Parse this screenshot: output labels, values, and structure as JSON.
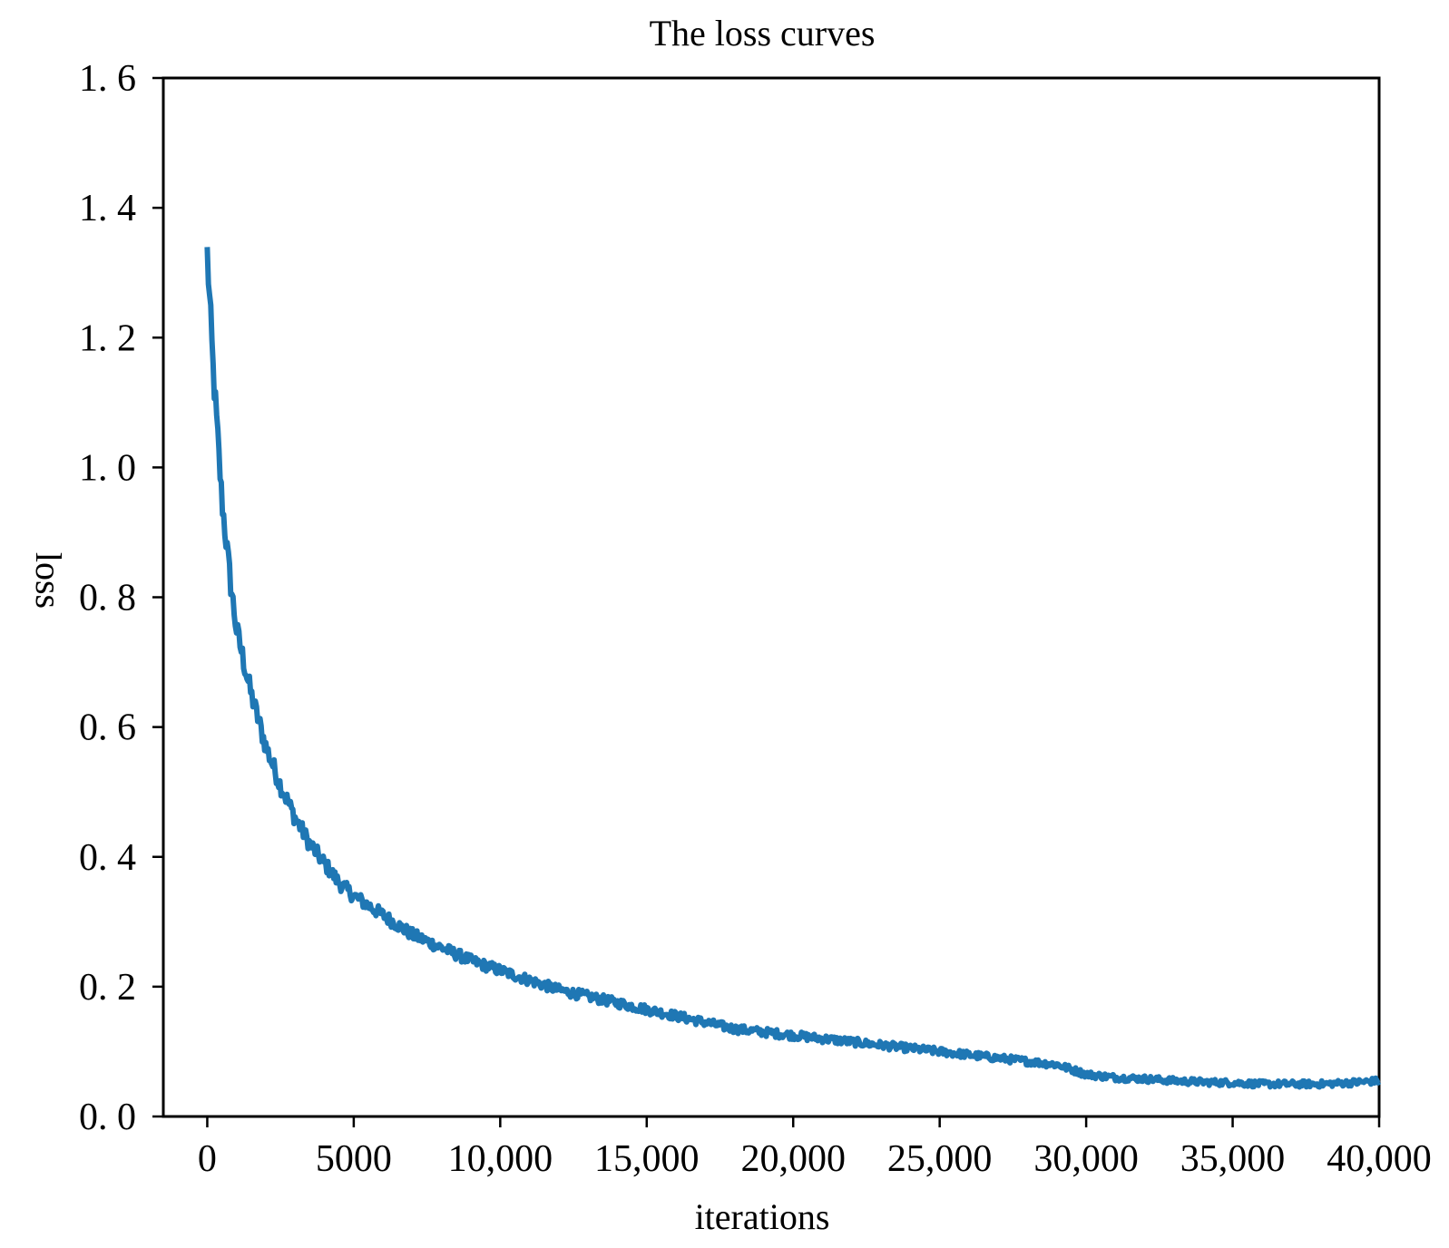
{
  "chart_data": {
    "type": "line",
    "title": "The loss curves",
    "xlabel": "iterations",
    "ylabel": "loss",
    "xlim": [
      -1500,
      40000
    ],
    "ylim": [
      0.0,
      1.6
    ],
    "x_ticks": [
      {
        "value": 0,
        "label": "0"
      },
      {
        "value": 5000,
        "label": "5000"
      },
      {
        "value": 10000,
        "label": "10,000"
      },
      {
        "value": 15000,
        "label": "15,000"
      },
      {
        "value": 20000,
        "label": "20,000"
      },
      {
        "value": 25000,
        "label": "25,000"
      },
      {
        "value": 30000,
        "label": "30,000"
      },
      {
        "value": 35000,
        "label": "35,000"
      },
      {
        "value": 40000,
        "label": "40,000"
      }
    ],
    "y_ticks": [
      {
        "value": 0.0,
        "label": "0. 0"
      },
      {
        "value": 0.2,
        "label": "0. 2"
      },
      {
        "value": 0.4,
        "label": "0. 4"
      },
      {
        "value": 0.6,
        "label": "0. 6"
      },
      {
        "value": 0.8,
        "label": "0. 8"
      },
      {
        "value": 1.0,
        "label": "1. 0"
      },
      {
        "value": 1.2,
        "label": "1. 2"
      },
      {
        "value": 1.4,
        "label": "1. 4"
      },
      {
        "value": 1.6,
        "label": "1. 6"
      }
    ],
    "grid": false,
    "legend": "none",
    "series": [
      {
        "color": "#1f77b4",
        "x": [
          0,
          200,
          500,
          800,
          1000,
          1500,
          2000,
          2500,
          3000,
          3500,
          4000,
          4500,
          5000,
          6000,
          7000,
          8000,
          9000,
          10000,
          11000,
          12000,
          13000,
          14000,
          15000,
          16000,
          17000,
          18000,
          19000,
          20000,
          21000,
          22000,
          23000,
          24000,
          25000,
          26000,
          27000,
          28000,
          29000,
          30000,
          31000,
          32000,
          33000,
          34000,
          35000,
          36000,
          37000,
          38000,
          39000,
          40000
        ],
        "y": [
          1.33,
          1.15,
          0.95,
          0.82,
          0.75,
          0.65,
          0.57,
          0.51,
          0.46,
          0.42,
          0.39,
          0.36,
          0.34,
          0.31,
          0.28,
          0.26,
          0.24,
          0.225,
          0.21,
          0.195,
          0.185,
          0.175,
          0.165,
          0.155,
          0.145,
          0.135,
          0.13,
          0.125,
          0.12,
          0.115,
          0.11,
          0.105,
          0.1,
          0.095,
          0.09,
          0.085,
          0.08,
          0.065,
          0.06,
          0.058,
          0.055,
          0.053,
          0.052,
          0.05,
          0.05,
          0.05,
          0.052,
          0.055
        ]
      }
    ]
  }
}
